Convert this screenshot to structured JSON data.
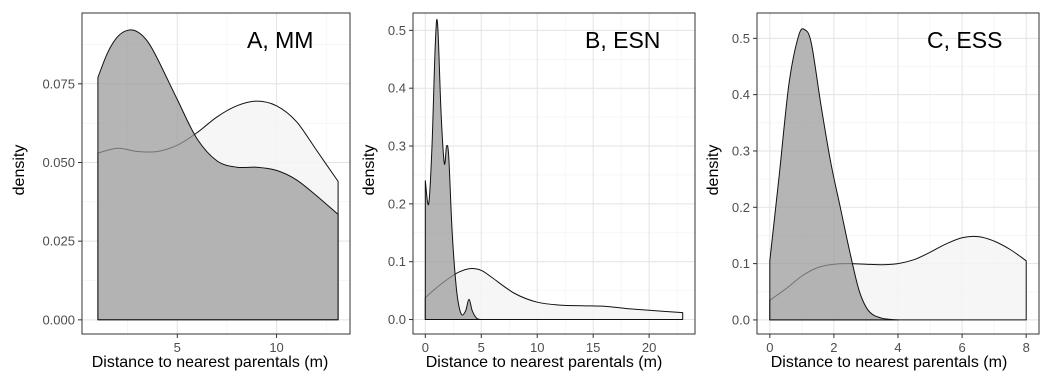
{
  "chart_data": [
    {
      "type": "area",
      "title": "A, MM",
      "xlabel": "Distance to nearest parentals (m)",
      "ylabel": "density",
      "xlim": [
        0.2,
        13.7
      ],
      "ylim": [
        -0.0045,
        0.0975
      ],
      "xticks": [
        5,
        10
      ],
      "xtick_labels": [
        "5",
        "10"
      ],
      "yticks": [
        0,
        0.025,
        0.05,
        0.075
      ],
      "ytick_labels": [
        "0.000",
        "0.025",
        "0.050",
        "0.075"
      ],
      "grid": true,
      "series": [
        {
          "color": "#f4f4f4",
          "x": [
            1,
            2,
            3,
            4,
            5,
            6,
            7,
            8,
            9,
            10,
            11,
            12,
            13.1
          ],
          "y": [
            0.053,
            0.0545,
            0.0535,
            0.0535,
            0.0555,
            0.0595,
            0.0645,
            0.068,
            0.0695,
            0.068,
            0.063,
            0.054,
            0.044
          ]
        },
        {
          "color": "#999999",
          "x": [
            1,
            1.5,
            2,
            2.5,
            3,
            3.5,
            4,
            5,
            6,
            7,
            8,
            9,
            10,
            11,
            12,
            13.1
          ],
          "y": [
            0.077,
            0.085,
            0.09,
            0.092,
            0.0915,
            0.0885,
            0.083,
            0.07,
            0.0575,
            0.0505,
            0.0485,
            0.0485,
            0.0475,
            0.0445,
            0.0395,
            0.0335
          ]
        }
      ]
    },
    {
      "type": "area",
      "title": "B, ESN",
      "xlabel": "Distance to nearest parentals (m)",
      "ylabel": "density",
      "xlim": [
        -1.1,
        24.1
      ],
      "ylim": [
        -0.025,
        0.53
      ],
      "xticks": [
        0,
        5,
        10,
        15,
        20
      ],
      "xtick_labels": [
        "0",
        "5",
        "10",
        "15",
        "20"
      ],
      "yticks": [
        0,
        0.1,
        0.2,
        0.3,
        0.4,
        0.5
      ],
      "ytick_labels": [
        "0.0",
        "0.1",
        "0.2",
        "0.3",
        "0.4",
        "0.5"
      ],
      "grid": true,
      "series": [
        {
          "color": "#f4f4f4",
          "x": [
            0,
            1,
            2,
            3,
            4,
            5,
            6,
            8,
            10,
            12,
            14,
            16,
            18,
            20,
            23
          ],
          "y": [
            0.038,
            0.055,
            0.07,
            0.082,
            0.088,
            0.085,
            0.072,
            0.045,
            0.03,
            0.025,
            0.024,
            0.023,
            0.019,
            0.016,
            0.012
          ]
        },
        {
          "color": "#999999",
          "x": [
            0,
            0.3,
            0.6,
            0.9,
            1.1,
            1.4,
            1.7,
            1.9,
            2.1,
            2.4,
            2.8,
            3.2,
            3.6,
            3.9,
            4.2,
            4.6,
            5
          ],
          "y": [
            0.24,
            0.2,
            0.3,
            0.48,
            0.51,
            0.36,
            0.27,
            0.3,
            0.28,
            0.15,
            0.05,
            0.01,
            0.015,
            0.035,
            0.015,
            0.002,
            0
          ]
        }
      ]
    },
    {
      "type": "area",
      "title": "C, ESS",
      "xlabel": "Distance to nearest parentals (m)",
      "ylabel": "density",
      "xlim": [
        -0.4,
        8.4
      ],
      "ylim": [
        -0.025,
        0.545
      ],
      "xticks": [
        0,
        2,
        4,
        6,
        8
      ],
      "xtick_labels": [
        "0",
        "2",
        "4",
        "6",
        "8"
      ],
      "yticks": [
        0,
        0.1,
        0.2,
        0.3,
        0.4,
        0.5
      ],
      "ytick_labels": [
        "0.0",
        "0.1",
        "0.2",
        "0.3",
        "0.4",
        "0.5"
      ],
      "grid": true,
      "series": [
        {
          "color": "#f4f4f4",
          "x": [
            0,
            0.5,
            1,
            1.5,
            2,
            2.5,
            3,
            3.5,
            4,
            4.5,
            5,
            5.5,
            6,
            6.5,
            7,
            7.5,
            8
          ],
          "y": [
            0.035,
            0.055,
            0.078,
            0.093,
            0.099,
            0.1,
            0.099,
            0.098,
            0.1,
            0.107,
            0.12,
            0.135,
            0.146,
            0.148,
            0.14,
            0.125,
            0.105
          ]
        },
        {
          "color": "#999999",
          "x": [
            0,
            0.3,
            0.6,
            0.9,
            1.1,
            1.3,
            1.6,
            1.9,
            2.2,
            2.5,
            2.8,
            3.1,
            3.5,
            4
          ],
          "y": [
            0.105,
            0.26,
            0.42,
            0.505,
            0.515,
            0.49,
            0.38,
            0.28,
            0.2,
            0.12,
            0.05,
            0.015,
            0.003,
            0
          ]
        }
      ]
    }
  ]
}
